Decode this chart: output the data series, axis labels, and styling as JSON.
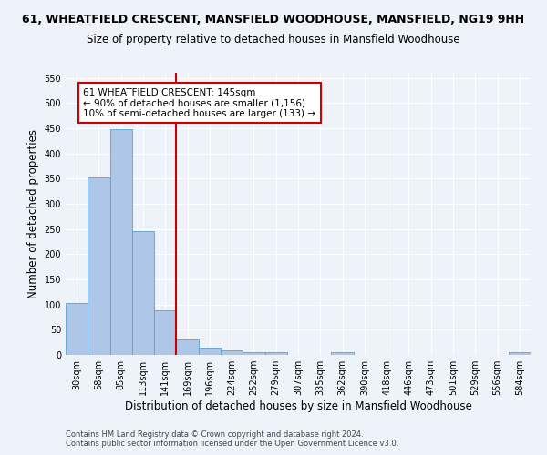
{
  "title1": "61, WHEATFIELD CRESCENT, MANSFIELD WOODHOUSE, MANSFIELD, NG19 9HH",
  "title2": "Size of property relative to detached houses in Mansfield Woodhouse",
  "xlabel": "Distribution of detached houses by size in Mansfield Woodhouse",
  "ylabel": "Number of detached properties",
  "categories": [
    "30sqm",
    "58sqm",
    "85sqm",
    "113sqm",
    "141sqm",
    "169sqm",
    "196sqm",
    "224sqm",
    "252sqm",
    "279sqm",
    "307sqm",
    "335sqm",
    "362sqm",
    "390sqm",
    "418sqm",
    "446sqm",
    "473sqm",
    "501sqm",
    "529sqm",
    "556sqm",
    "584sqm"
  ],
  "values": [
    103,
    353,
    448,
    246,
    88,
    30,
    14,
    9,
    5,
    5,
    0,
    0,
    5,
    0,
    0,
    0,
    0,
    0,
    0,
    0,
    5
  ],
  "bar_color": "#aec6e8",
  "bar_edge_color": "#5a9fd4",
  "subject_line_color": "#cc0000",
  "annotation_text": "61 WHEATFIELD CRESCENT: 145sqm\n← 90% of detached houses are smaller (1,156)\n10% of semi-detached houses are larger (133) →",
  "annotation_box_color": "#ffffff",
  "annotation_box_edge_color": "#cc0000",
  "ylim": [
    0,
    560
  ],
  "yticks": [
    0,
    50,
    100,
    150,
    200,
    250,
    300,
    350,
    400,
    450,
    500,
    550
  ],
  "footnote1": "Contains HM Land Registry data © Crown copyright and database right 2024.",
  "footnote2": "Contains public sector information licensed under the Open Government Licence v3.0.",
  "background_color": "#eef2f9",
  "grid_color": "#ffffff",
  "title_fontsize": 9,
  "subtitle_fontsize": 8.5,
  "axis_label_fontsize": 8.5,
  "tick_fontsize": 7,
  "footnote_fontsize": 6,
  "annotation_fontsize": 7.5
}
